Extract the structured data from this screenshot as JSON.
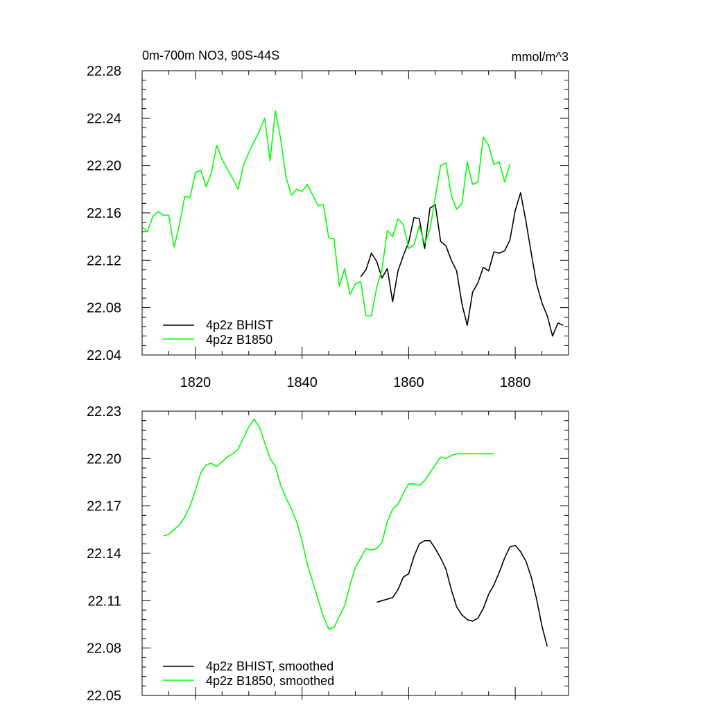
{
  "chart_data": [
    {
      "type": "line",
      "title_left": "0m-700m NO3, 90S-44S",
      "title_right": "mmol/m^3",
      "xlim": [
        1810,
        1890
      ],
      "ylim": [
        22.04,
        22.28
      ],
      "x_ticks": [
        1820,
        1840,
        1860,
        1880
      ],
      "x_tick_labels": [
        "1820",
        "1840",
        "1860",
        "1880"
      ],
      "y_ticks": [
        22.04,
        22.08,
        22.12,
        22.16,
        22.2,
        22.24,
        22.28
      ],
      "y_tick_labels": [
        "22.04",
        "22.08",
        "22.12",
        "22.16",
        "22.20",
        "22.24",
        "22.28"
      ],
      "legend_position": "bottom-left",
      "series": [
        {
          "name": "4p2z BHIST",
          "color": "#000000",
          "x": [
            1851,
            1852,
            1853,
            1854,
            1855,
            1856,
            1857,
            1858,
            1859,
            1860,
            1861,
            1862,
            1863,
            1864,
            1865,
            1866,
            1867,
            1868,
            1869,
            1870,
            1871,
            1872,
            1873,
            1874,
            1875,
            1876,
            1877,
            1878,
            1879,
            1880,
            1881,
            1882,
            1883,
            1884,
            1885,
            1886,
            1887,
            1888,
            1889
          ],
          "y": [
            22.106,
            22.112,
            22.126,
            22.119,
            22.105,
            22.113,
            22.085,
            22.111,
            22.124,
            22.135,
            22.156,
            22.155,
            22.13,
            22.164,
            22.167,
            22.136,
            22.132,
            22.12,
            22.111,
            22.083,
            22.065,
            22.093,
            22.101,
            22.114,
            22.111,
            22.127,
            22.126,
            22.128,
            22.137,
            22.162,
            22.177,
            22.153,
            22.126,
            22.1,
            22.084,
            22.073,
            22.056,
            22.067,
            22.065
          ]
        },
        {
          "name": "4p2z B1850",
          "color": "#00ff00",
          "x": [
            1810,
            1811,
            1812,
            1813,
            1814,
            1815,
            1816,
            1817,
            1818,
            1819,
            1820,
            1821,
            1822,
            1823,
            1824,
            1825,
            1826,
            1827,
            1828,
            1829,
            1830,
            1831,
            1832,
            1833,
            1834,
            1835,
            1836,
            1837,
            1838,
            1839,
            1840,
            1841,
            1842,
            1843,
            1844,
            1845,
            1846,
            1847,
            1848,
            1849,
            1850,
            1851,
            1852,
            1853,
            1854,
            1855,
            1856,
            1857,
            1858,
            1859,
            1860,
            1861,
            1862,
            1863,
            1864,
            1865,
            1866,
            1867,
            1868,
            1869,
            1870,
            1871,
            1872,
            1873,
            1874,
            1875,
            1876,
            1877,
            1878,
            1879
          ],
          "y": [
            22.148,
            22.144,
            22.157,
            22.161,
            22.158,
            22.158,
            22.131,
            22.15,
            22.174,
            22.173,
            22.194,
            22.196,
            22.182,
            22.194,
            22.217,
            22.205,
            22.197,
            22.189,
            22.18,
            22.2,
            22.211,
            22.22,
            22.229,
            22.24,
            22.204,
            22.246,
            22.222,
            22.19,
            22.175,
            22.18,
            22.178,
            22.184,
            22.175,
            22.166,
            22.167,
            22.139,
            22.138,
            22.098,
            22.113,
            22.091,
            22.1,
            22.102,
            22.073,
            22.073,
            22.097,
            22.112,
            22.145,
            22.14,
            22.155,
            22.15,
            22.13,
            22.133,
            22.149,
            22.134,
            22.146,
            22.173,
            22.2,
            22.202,
            22.175,
            22.163,
            22.168,
            22.203,
            22.184,
            22.186,
            22.224,
            22.217,
            22.201,
            22.203,
            22.186,
            22.201
          ]
        }
      ]
    },
    {
      "type": "line",
      "xlim": [
        1810,
        1890
      ],
      "ylim": [
        22.05,
        22.23
      ],
      "x_ticks": [
        1820,
        1840,
        1860,
        1880
      ],
      "y_ticks": [
        22.05,
        22.08,
        22.11,
        22.14,
        22.17,
        22.2,
        22.23
      ],
      "y_tick_labels": [
        "22.05",
        "22.08",
        "22.11",
        "22.14",
        "22.17",
        "22.20",
        "22.23"
      ],
      "legend_position": "bottom-left",
      "series": [
        {
          "name": "4p2z BHIST, smoothed",
          "color": "#000000",
          "x": [
            1854,
            1855,
            1856,
            1857,
            1858,
            1859,
            1860,
            1861,
            1862,
            1863,
            1864,
            1865,
            1866,
            1867,
            1868,
            1869,
            1870,
            1871,
            1872,
            1873,
            1874,
            1875,
            1876,
            1877,
            1878,
            1879,
            1880,
            1881,
            1882,
            1883,
            1884,
            1885,
            1886
          ],
          "y": [
            22.109,
            22.11,
            22.111,
            22.112,
            22.117,
            22.125,
            22.127,
            22.138,
            22.146,
            22.148,
            22.148,
            22.143,
            22.137,
            22.13,
            22.117,
            22.106,
            22.101,
            22.098,
            22.097,
            22.099,
            22.105,
            22.114,
            22.12,
            22.128,
            22.137,
            22.144,
            22.145,
            22.141,
            22.135,
            22.125,
            22.111,
            22.094,
            22.081
          ]
        },
        {
          "name": "4p2z B1850, smoothed",
          "color": "#00ff00",
          "x": [
            1814,
            1815,
            1816,
            1817,
            1818,
            1819,
            1820,
            1821,
            1822,
            1823,
            1824,
            1825,
            1826,
            1827,
            1828,
            1829,
            1830,
            1831,
            1832,
            1833,
            1834,
            1835,
            1836,
            1837,
            1838,
            1839,
            1840,
            1841,
            1842,
            1843,
            1844,
            1845,
            1846,
            1847,
            1848,
            1849,
            1850,
            1851,
            1852,
            1853,
            1854,
            1855,
            1856,
            1857,
            1858,
            1859,
            1860,
            1861,
            1862,
            1863,
            1864,
            1865,
            1866,
            1867,
            1868,
            1869,
            1870,
            1871,
            1872,
            1873,
            1874,
            1875,
            1876
          ],
          "y": [
            22.151,
            22.152,
            22.155,
            22.158,
            22.163,
            22.17,
            22.18,
            22.191,
            22.196,
            22.197,
            22.195,
            22.198,
            22.201,
            22.203,
            22.206,
            22.213,
            22.22,
            22.225,
            22.22,
            22.21,
            22.2,
            22.195,
            22.183,
            22.175,
            22.168,
            22.16,
            22.148,
            22.133,
            22.122,
            22.111,
            22.1,
            22.092,
            22.093,
            22.1,
            22.107,
            22.12,
            22.131,
            22.137,
            22.143,
            22.142,
            22.143,
            22.147,
            22.16,
            22.168,
            22.171,
            22.178,
            22.184,
            22.184,
            22.183,
            22.186,
            22.191,
            22.196,
            22.201,
            22.2,
            22.202,
            22.203,
            22.203,
            22.203,
            22.203,
            22.203,
            22.203,
            22.203,
            22.203
          ]
        }
      ]
    }
  ]
}
